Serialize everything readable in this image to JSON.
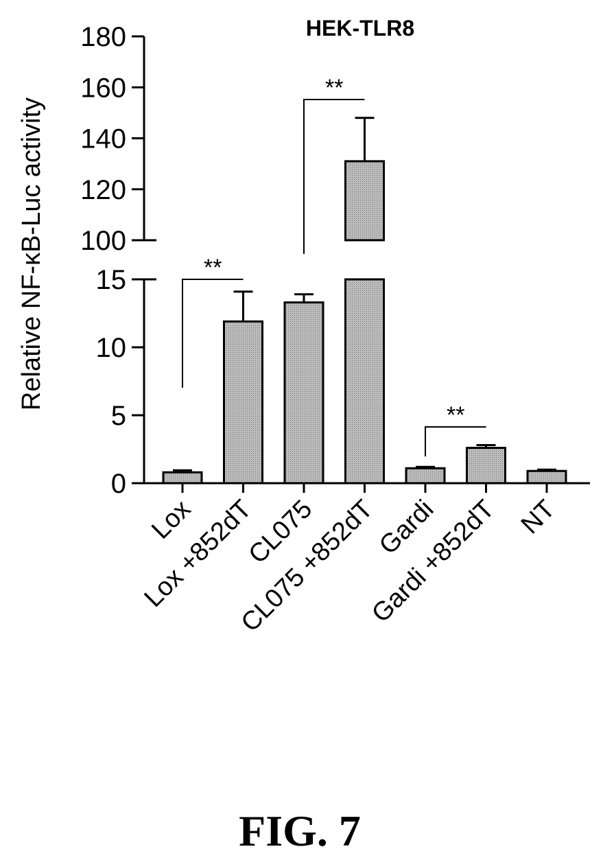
{
  "chart_data": {
    "type": "bar",
    "title": "HEK-TLR8",
    "ylabel": "Relative NF-κB-Luc activity",
    "xlabel": "",
    "categories": [
      "Lox",
      "Lox +852dT",
      "CL075",
      "CL075 +852dT",
      "Gardi",
      "Gardi +852dT",
      "NT"
    ],
    "values": [
      0.8,
      11.9,
      13.3,
      131,
      1.1,
      2.6,
      0.9
    ],
    "errors": [
      0.15,
      2.2,
      0.6,
      17,
      0.1,
      0.2,
      0.1
    ],
    "y_axis_broken": true,
    "lower_segment": {
      "ylim": [
        0,
        15
      ],
      "ticks": [
        0,
        5,
        10,
        15
      ]
    },
    "upper_segment": {
      "ylim": [
        100,
        180
      ],
      "ticks": [
        100,
        120,
        140,
        160,
        180
      ]
    },
    "significance": [
      {
        "from": "Lox",
        "to": "Lox +852dT",
        "label": "**"
      },
      {
        "from": "CL075",
        "to": "CL075 +852dT",
        "label": "**"
      },
      {
        "from": "Gardi",
        "to": "Gardi +852dT",
        "label": "**"
      }
    ],
    "colors": {
      "bar_fill": "#c8c8c8",
      "bar_stroke": "#000000"
    },
    "grid": false,
    "legend": "none"
  },
  "caption": "FIG. 7"
}
